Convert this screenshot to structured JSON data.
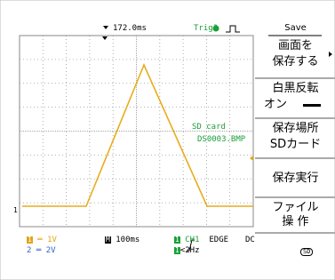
{
  "top_bar": {
    "time_offset": "172.0ms",
    "trigger_status": "Trig?"
  },
  "menu": {
    "title": "Save",
    "items": [
      {
        "lines": [
          "画面を",
          "保存する"
        ]
      },
      {
        "lines": [
          "白黒反転",
          "オン"
        ]
      },
      {
        "lines": [
          "保存場所",
          "SDカード"
        ]
      },
      {
        "lines": [
          "保存実行"
        ]
      },
      {
        "lines": [
          "ファイル",
          "操 作"
        ]
      }
    ]
  },
  "overlay": {
    "lines": [
      "SD card",
      "DS0003.BMP"
    ]
  },
  "channel_marker": "1",
  "bottom": {
    "ch1_label": "1",
    "ch1_scale": "1V",
    "ch2_label": "2",
    "ch2_scale": "2V",
    "timebase_label": "M",
    "timebase": "100ms",
    "trigger_source_label": "1",
    "trigger_source": "CH1",
    "trigger_type": "EDGE",
    "coupling": "DC",
    "frequency_label": "1",
    "frequency": "<2Hz",
    "storage": "SD"
  }
}
